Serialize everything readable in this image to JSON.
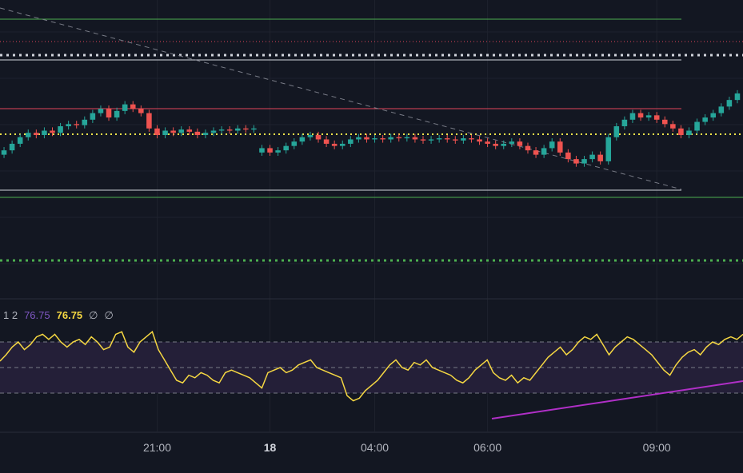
{
  "colors": {
    "background": "#131722",
    "grid": "#1e222d",
    "candle_up": "#26a69a",
    "candle_down": "#ef5350",
    "rsi_line": "#f5d742",
    "rsi_band": "#241f38",
    "trend_line_rsi": "#b02fc7",
    "level_green": "#4caf50",
    "level_red": "#e0455b",
    "level_white": "#d1d4dc",
    "level_yellow_dotted": "#f0e44a",
    "dashed_trend": "#787b86"
  },
  "legend": {
    "params": "1 2",
    "value_1": "76.75",
    "value_2": "76.75",
    "extra_1": "∅",
    "extra_2": "∅"
  },
  "time_axis": {
    "labels": [
      {
        "text": "21:00",
        "bold": false,
        "bar": 19
      },
      {
        "text": "18",
        "bold": true,
        "bar": 33
      },
      {
        "text": "04:00",
        "bold": false,
        "bar": 46
      },
      {
        "text": "06:00",
        "bold": false,
        "bar": 60
      },
      {
        "text": "09:00",
        "bold": false,
        "bar": 81
      }
    ]
  },
  "chart_data": [
    {
      "type": "candlestick",
      "description_of_series": "price candles (approximate, unitless, no price scale visible)",
      "ylim": [
        0,
        100
      ],
      "bars": [
        {
          "o": 28,
          "c": 32
        },
        {
          "o": 32,
          "c": 38
        },
        {
          "o": 38,
          "c": 44
        },
        {
          "o": 44,
          "c": 48
        },
        {
          "o": 48,
          "c": 46
        },
        {
          "o": 46,
          "c": 50
        },
        {
          "o": 50,
          "c": 48
        },
        {
          "o": 48,
          "c": 54
        },
        {
          "o": 54,
          "c": 56
        },
        {
          "o": 56,
          "c": 55
        },
        {
          "o": 55,
          "c": 60
        },
        {
          "o": 60,
          "c": 66
        },
        {
          "o": 66,
          "c": 70
        },
        {
          "o": 70,
          "c": 62
        },
        {
          "o": 62,
          "c": 68
        },
        {
          "o": 68,
          "c": 74
        },
        {
          "o": 74,
          "c": 70
        },
        {
          "o": 70,
          "c": 66
        },
        {
          "o": 66,
          "c": 52
        },
        {
          "o": 52,
          "c": 46
        },
        {
          "o": 46,
          "c": 50
        },
        {
          "o": 50,
          "c": 48
        },
        {
          "o": 48,
          "c": 51
        },
        {
          "o": 51,
          "c": 49
        },
        {
          "o": 49,
          "c": 46
        },
        {
          "o": 46,
          "c": 48
        },
        {
          "o": 48,
          "c": 50
        },
        {
          "o": 50,
          "c": 51
        },
        {
          "o": 51,
          "c": 50
        },
        {
          "o": 50,
          "c": 52
        },
        {
          "o": 52,
          "c": 51
        },
        {
          "o": 51,
          "c": 52
        },
        {
          "o": 30,
          "c": 34
        },
        {
          "o": 34,
          "c": 30
        },
        {
          "o": 30,
          "c": 32
        },
        {
          "o": 32,
          "c": 36
        },
        {
          "o": 36,
          "c": 40
        },
        {
          "o": 40,
          "c": 44
        },
        {
          "o": 44,
          "c": 46
        },
        {
          "o": 46,
          "c": 42
        },
        {
          "o": 42,
          "c": 38
        },
        {
          "o": 38,
          "c": 36
        },
        {
          "o": 36,
          "c": 38
        },
        {
          "o": 38,
          "c": 42
        },
        {
          "o": 42,
          "c": 44
        },
        {
          "o": 44,
          "c": 42
        },
        {
          "o": 42,
          "c": 43
        },
        {
          "o": 43,
          "c": 42
        },
        {
          "o": 42,
          "c": 44
        },
        {
          "o": 44,
          "c": 43
        },
        {
          "o": 43,
          "c": 44
        },
        {
          "o": 44,
          "c": 42
        },
        {
          "o": 42,
          "c": 41
        },
        {
          "o": 41,
          "c": 42
        },
        {
          "o": 42,
          "c": 43
        },
        {
          "o": 43,
          "c": 42
        },
        {
          "o": 42,
          "c": 41
        },
        {
          "o": 41,
          "c": 43
        },
        {
          "o": 43,
          "c": 42
        },
        {
          "o": 42,
          "c": 40
        },
        {
          "o": 40,
          "c": 38
        },
        {
          "o": 38,
          "c": 36
        },
        {
          "o": 36,
          "c": 38
        },
        {
          "o": 38,
          "c": 40
        },
        {
          "o": 40,
          "c": 36
        },
        {
          "o": 36,
          "c": 32
        },
        {
          "o": 32,
          "c": 28
        },
        {
          "o": 28,
          "c": 34
        },
        {
          "o": 34,
          "c": 40
        },
        {
          "o": 40,
          "c": 30
        },
        {
          "o": 30,
          "c": 24
        },
        {
          "o": 24,
          "c": 20
        },
        {
          "o": 20,
          "c": 24
        },
        {
          "o": 24,
          "c": 28
        },
        {
          "o": 28,
          "c": 22
        },
        {
          "o": 22,
          "c": 44
        },
        {
          "o": 44,
          "c": 54
        },
        {
          "o": 54,
          "c": 60
        },
        {
          "o": 60,
          "c": 66
        },
        {
          "o": 66,
          "c": 62
        },
        {
          "o": 62,
          "c": 64
        },
        {
          "o": 64,
          "c": 60
        },
        {
          "o": 60,
          "c": 56
        },
        {
          "o": 56,
          "c": 52
        },
        {
          "o": 52,
          "c": 46
        },
        {
          "o": 46,
          "c": 50
        },
        {
          "o": 50,
          "c": 58
        },
        {
          "o": 58,
          "c": 62
        },
        {
          "o": 62,
          "c": 66
        },
        {
          "o": 66,
          "c": 72
        },
        {
          "o": 72,
          "c": 78
        },
        {
          "o": 78,
          "c": 84
        }
      ]
    },
    {
      "type": "line",
      "description_of_series": "RSI oscillator",
      "ylim": [
        0,
        100
      ],
      "upper_band": 70,
      "middle_band": 50,
      "lower_band": 30,
      "values": [
        55,
        60,
        66,
        70,
        64,
        68,
        74,
        76,
        72,
        76,
        70,
        66,
        70,
        72,
        68,
        74,
        70,
        64,
        66,
        76,
        78,
        66,
        62,
        70,
        74,
        78,
        64,
        56,
        48,
        40,
        38,
        44,
        42,
        46,
        44,
        40,
        38,
        46,
        48,
        46,
        44,
        42,
        38,
        34,
        46,
        48,
        50,
        46,
        48,
        52,
        54,
        56,
        50,
        48,
        46,
        44,
        42,
        28,
        24,
        26,
        32,
        36,
        40,
        46,
        52,
        56,
        50,
        48,
        54,
        52,
        56,
        50,
        48,
        46,
        44,
        40,
        38,
        42,
        48,
        52,
        56,
        46,
        42,
        40,
        44,
        38,
        42,
        40,
        46,
        52,
        58,
        62,
        66,
        60,
        64,
        70,
        74,
        72,
        76,
        68,
        60,
        66,
        70,
        74,
        72,
        68,
        64,
        60,
        54,
        48,
        44,
        52,
        58,
        62,
        64,
        60,
        66,
        70,
        68,
        72,
        74,
        72,
        76
      ]
    }
  ]
}
